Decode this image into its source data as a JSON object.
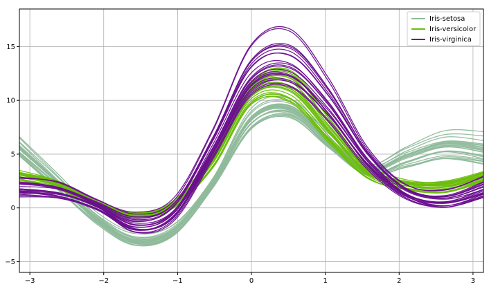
{
  "chart_data": {
    "type": "line",
    "title": "",
    "xlabel": "",
    "ylabel": "",
    "xlim": [
      -3.14159,
      3.14159
    ],
    "ylim": [
      -6,
      18.5
    ],
    "xticks": [
      -3,
      -2,
      -1,
      0,
      1,
      2,
      3
    ],
    "yticks": [
      -5,
      0,
      5,
      10,
      15
    ],
    "xtick_labels": [
      "−3",
      "−2",
      "−1",
      "0",
      "1",
      "2",
      "3"
    ],
    "ytick_labels": [
      "−5",
      "0",
      "5",
      "10",
      "15"
    ],
    "grid": true,
    "legend_position": "top-right",
    "series": [
      {
        "name": "Iris-setosa",
        "color": "#8fba9b",
        "x": [
          -3.14,
          -2.62,
          -2.09,
          -1.57,
          -1.05,
          -0.52,
          0,
          0.52,
          1.05,
          1.57,
          2.09,
          2.62,
          3.14
        ],
        "y_low": [
          4.6,
          1.6,
          -1.5,
          -3.6,
          -2.7,
          1.8,
          7.2,
          8.3,
          5.4,
          2.9,
          3.5,
          4.3,
          3.8
        ],
        "y_mid": [
          5.6,
          2.4,
          -1.0,
          -3.0,
          -2.1,
          2.4,
          8.3,
          9.3,
          6.2,
          3.5,
          4.8,
          5.9,
          5.5
        ],
        "y_high": [
          6.9,
          3.3,
          -0.5,
          -2.3,
          -1.4,
          3.0,
          9.4,
          10.1,
          7.0,
          4.2,
          5.9,
          7.3,
          7.1
        ]
      },
      {
        "name": "Iris-versicolor",
        "color": "#6bbd0c",
        "x": [
          -3.14,
          -2.62,
          -2.09,
          -1.57,
          -1.05,
          -0.52,
          0,
          0.52,
          1.05,
          1.57,
          2.09,
          2.62,
          3.14
        ],
        "y_low": [
          2.4,
          1.6,
          0.0,
          -0.9,
          0.0,
          3.5,
          9.3,
          9.5,
          5.8,
          2.6,
          1.5,
          1.2,
          2.3
        ],
        "y_mid": [
          3.0,
          2.2,
          0.4,
          -0.7,
          0.3,
          4.4,
          10.6,
          11.2,
          7.2,
          3.3,
          2.2,
          2.1,
          3.0
        ],
        "y_high": [
          3.5,
          2.7,
          0.8,
          -0.4,
          0.6,
          5.3,
          12.2,
          13.5,
          9.0,
          4.2,
          2.7,
          2.7,
          3.5
        ]
      },
      {
        "name": "Iris-virginica",
        "color": "#6a0f8e",
        "x": [
          -3.14,
          -2.62,
          -2.09,
          -1.57,
          -1.05,
          -0.52,
          0,
          0.52,
          1.05,
          1.57,
          2.09,
          2.62,
          3.14
        ],
        "y_low": [
          1.1,
          0.9,
          -0.2,
          -2.4,
          -1.2,
          4.6,
          10.4,
          11.0,
          7.8,
          3.6,
          0.9,
          0.0,
          0.8
        ],
        "y_mid": [
          2.1,
          1.7,
          0.3,
          -1.3,
          0.0,
          6.1,
          12.8,
          13.9,
          10.2,
          4.9,
          1.6,
          0.8,
          1.9
        ],
        "y_high": [
          3.1,
          2.6,
          0.8,
          -0.3,
          1.1,
          7.7,
          15.8,
          17.2,
          12.3,
          5.8,
          2.4,
          1.9,
          3.1
        ]
      }
    ]
  }
}
